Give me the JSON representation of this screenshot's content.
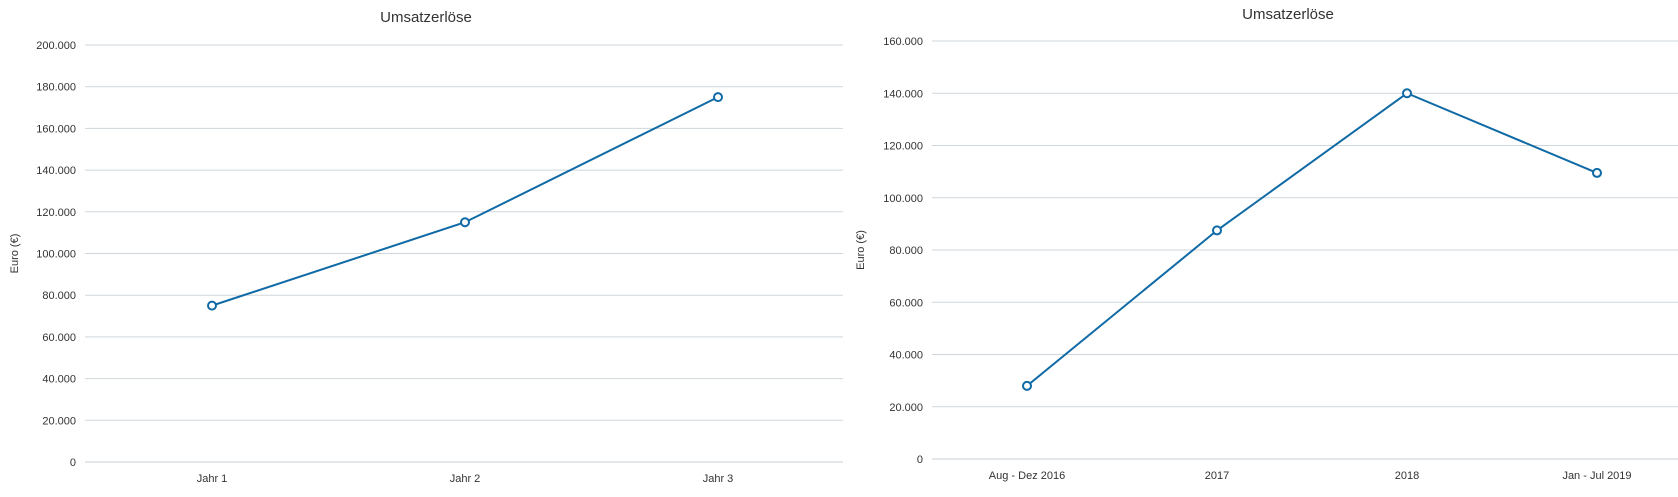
{
  "colors": {
    "series": "#0f6aa5"
  },
  "chart_data": [
    {
      "type": "line",
      "title": "Umsatzerlöse",
      "xlabel": "",
      "ylabel": "Euro (€)",
      "ylim": [
        0,
        200000
      ],
      "y_ticks": [
        0,
        20000,
        40000,
        60000,
        80000,
        100000,
        120000,
        140000,
        160000,
        180000,
        200000
      ],
      "y_tick_labels": [
        "0",
        "20.000",
        "40.000",
        "60.000",
        "80.000",
        "100.000",
        "120.000",
        "140.000",
        "160.000",
        "180.000",
        "200.000"
      ],
      "categories": [
        "Jahr 1",
        "Jahr 2",
        "Jahr 3"
      ],
      "values": [
        75000,
        115000,
        175000
      ],
      "grid": true,
      "legend": "none"
    },
    {
      "type": "line",
      "title": "Umsatzerlöse",
      "xlabel": "",
      "ylabel": "Euro (€)",
      "ylim": [
        0,
        160000
      ],
      "y_ticks": [
        0,
        20000,
        40000,
        60000,
        80000,
        100000,
        120000,
        140000,
        160000
      ],
      "y_tick_labels": [
        "0",
        "20.000",
        "40.000",
        "60.000",
        "80.000",
        "100.000",
        "120.000",
        "140.000",
        "160.000"
      ],
      "categories": [
        "Aug - Dez 2016",
        "2017",
        "2018",
        "Jan - Jul 2019"
      ],
      "values": [
        28000,
        87500,
        140000,
        109500
      ],
      "grid": true,
      "legend": "none"
    }
  ]
}
